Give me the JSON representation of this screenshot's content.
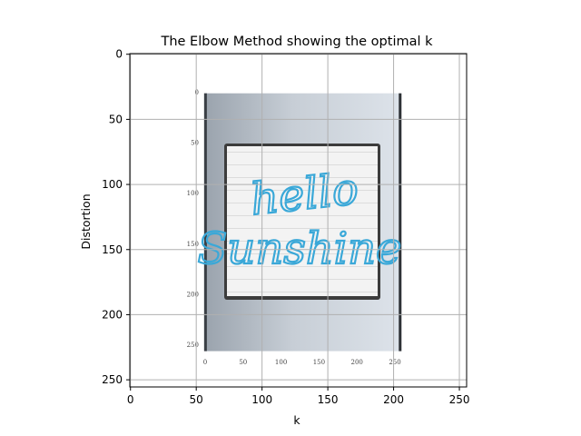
{
  "chart_data": {
    "type": "image",
    "title": "The Elbow Method showing the optimal k",
    "xlabel": "k",
    "ylabel": "Distortion",
    "xlim": [
      -0.5,
      255.5
    ],
    "ylim": [
      255.5,
      -0.5
    ],
    "xticks": [
      0,
      50,
      100,
      150,
      200,
      250
    ],
    "yticks": [
      0,
      50,
      100,
      150,
      200,
      250
    ],
    "grid": true,
    "image": {
      "description": "embedded photo of a framed hello sunshine sign",
      "extent_x": [
        56,
        206
      ],
      "extent_y": [
        30,
        228
      ],
      "sign_text_line1": "hello",
      "sign_text_line2": "Sunshine",
      "inner_ticks": [
        0,
        50,
        100,
        150,
        200,
        250
      ]
    },
    "colors": {
      "grid": "#b0b0b0",
      "frame_dark": "#9aa3ad",
      "frame_light": "#dde3ea",
      "sign_bg": "#f2f2f2",
      "lettering": "#3aa8d8"
    }
  }
}
